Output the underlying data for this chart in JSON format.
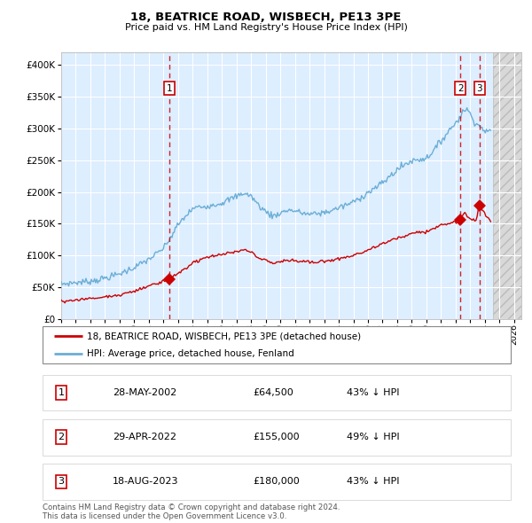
{
  "title": "18, BEATRICE ROAD, WISBECH, PE13 3PE",
  "subtitle": "Price paid vs. HM Land Registry's House Price Index (HPI)",
  "legend_line1": "18, BEATRICE ROAD, WISBECH, PE13 3PE (detached house)",
  "legend_line2": "HPI: Average price, detached house, Fenland",
  "sale_events": [
    {
      "num": 1,
      "date_label": "28-MAY-2002",
      "price_label": "£64,500",
      "hpi_label": "43% ↓ HPI",
      "x_year": 2002.41,
      "price": 64500
    },
    {
      "num": 2,
      "date_label": "29-APR-2022",
      "price_label": "£155,000",
      "hpi_label": "49% ↓ HPI",
      "x_year": 2022.33,
      "price": 155000
    },
    {
      "num": 3,
      "date_label": "18-AUG-2023",
      "price_label": "£180,000",
      "hpi_label": "43% ↓ HPI",
      "x_year": 2023.63,
      "price": 180000
    }
  ],
  "footer": "Contains HM Land Registry data © Crown copyright and database right 2024.\nThis data is licensed under the Open Government Licence v3.0.",
  "hpi_color": "#6baed6",
  "price_color": "#cc0000",
  "background_chart": "#ddeeff",
  "grid_color": "#ffffff",
  "dashed_color": "#cc0000",
  "ylim": [
    0,
    420000
  ],
  "xlim_start": 1995.0,
  "xlim_end": 2026.5,
  "future_x": 2024.58,
  "hpi_anchors": [
    [
      1995.0,
      55000
    ],
    [
      1995.5,
      56000
    ],
    [
      1996.0,
      57500
    ],
    [
      1996.5,
      58500
    ],
    [
      1997.0,
      60000
    ],
    [
      1997.5,
      62000
    ],
    [
      1998.0,
      65000
    ],
    [
      1998.5,
      68000
    ],
    [
      1999.0,
      72000
    ],
    [
      1999.5,
      77000
    ],
    [
      2000.0,
      82000
    ],
    [
      2000.5,
      88000
    ],
    [
      2001.0,
      95000
    ],
    [
      2001.5,
      103000
    ],
    [
      2002.0,
      112000
    ],
    [
      2002.5,
      130000
    ],
    [
      2003.0,
      150000
    ],
    [
      2003.5,
      163000
    ],
    [
      2004.0,
      175000
    ],
    [
      2004.5,
      178000
    ],
    [
      2005.0,
      180000
    ],
    [
      2005.5,
      182000
    ],
    [
      2006.0,
      185000
    ],
    [
      2006.5,
      190000
    ],
    [
      2007.0,
      195000
    ],
    [
      2007.5,
      200000
    ],
    [
      2008.0,
      195000
    ],
    [
      2008.5,
      180000
    ],
    [
      2009.0,
      170000
    ],
    [
      2009.5,
      163000
    ],
    [
      2010.0,
      168000
    ],
    [
      2010.5,
      172000
    ],
    [
      2011.0,
      170000
    ],
    [
      2011.5,
      167000
    ],
    [
      2012.0,
      165000
    ],
    [
      2012.5,
      166000
    ],
    [
      2013.0,
      168000
    ],
    [
      2013.5,
      171000
    ],
    [
      2014.0,
      175000
    ],
    [
      2014.5,
      180000
    ],
    [
      2015.0,
      185000
    ],
    [
      2015.5,
      192000
    ],
    [
      2016.0,
      200000
    ],
    [
      2016.5,
      207000
    ],
    [
      2017.0,
      215000
    ],
    [
      2017.5,
      225000
    ],
    [
      2018.0,
      235000
    ],
    [
      2018.5,
      242000
    ],
    [
      2019.0,
      248000
    ],
    [
      2019.5,
      250000
    ],
    [
      2020.0,
      252000
    ],
    [
      2020.5,
      265000
    ],
    [
      2021.0,
      280000
    ],
    [
      2021.5,
      295000
    ],
    [
      2022.0,
      308000
    ],
    [
      2022.3,
      318000
    ],
    [
      2022.7,
      330000
    ],
    [
      2023.0,
      320000
    ],
    [
      2023.3,
      310000
    ],
    [
      2023.7,
      300000
    ],
    [
      2024.0,
      295000
    ],
    [
      2024.4,
      292000
    ]
  ],
  "price_anchors": [
    [
      1995.0,
      28000
    ],
    [
      1995.5,
      29000
    ],
    [
      1996.0,
      30000
    ],
    [
      1996.5,
      31000
    ],
    [
      1997.0,
      32000
    ],
    [
      1997.5,
      33500
    ],
    [
      1998.0,
      35000
    ],
    [
      1998.5,
      36500
    ],
    [
      1999.0,
      38000
    ],
    [
      1999.5,
      41000
    ],
    [
      2000.0,
      44000
    ],
    [
      2000.5,
      48000
    ],
    [
      2001.0,
      52000
    ],
    [
      2001.5,
      56000
    ],
    [
      2002.0,
      60000
    ],
    [
      2002.41,
      64500
    ],
    [
      2003.0,
      72000
    ],
    [
      2003.5,
      80000
    ],
    [
      2004.0,
      88000
    ],
    [
      2004.5,
      94000
    ],
    [
      2005.0,
      98000
    ],
    [
      2005.5,
      100000
    ],
    [
      2006.0,
      102000
    ],
    [
      2006.5,
      105000
    ],
    [
      2007.0,
      107000
    ],
    [
      2007.5,
      110000
    ],
    [
      2008.0,
      107000
    ],
    [
      2008.5,
      97000
    ],
    [
      2009.0,
      92000
    ],
    [
      2009.5,
      88000
    ],
    [
      2010.0,
      91000
    ],
    [
      2010.5,
      93000
    ],
    [
      2011.0,
      93000
    ],
    [
      2011.5,
      91000
    ],
    [
      2012.0,
      90000
    ],
    [
      2012.5,
      90500
    ],
    [
      2013.0,
      91000
    ],
    [
      2013.5,
      93000
    ],
    [
      2014.0,
      95000
    ],
    [
      2014.5,
      97500
    ],
    [
      2015.0,
      100000
    ],
    [
      2015.5,
      104000
    ],
    [
      2016.0,
      109000
    ],
    [
      2016.5,
      113000
    ],
    [
      2017.0,
      118000
    ],
    [
      2017.5,
      123000
    ],
    [
      2018.0,
      128000
    ],
    [
      2018.5,
      131000
    ],
    [
      2019.0,
      135000
    ],
    [
      2019.5,
      136500
    ],
    [
      2020.0,
      138000
    ],
    [
      2020.5,
      143000
    ],
    [
      2021.0,
      148000
    ],
    [
      2021.5,
      151000
    ],
    [
      2022.0,
      152000
    ],
    [
      2022.33,
      155000
    ],
    [
      2022.6,
      167000
    ],
    [
      2022.8,
      163000
    ],
    [
      2023.0,
      158000
    ],
    [
      2023.4,
      153000
    ],
    [
      2023.63,
      180000
    ],
    [
      2024.0,
      165000
    ],
    [
      2024.4,
      155000
    ]
  ]
}
